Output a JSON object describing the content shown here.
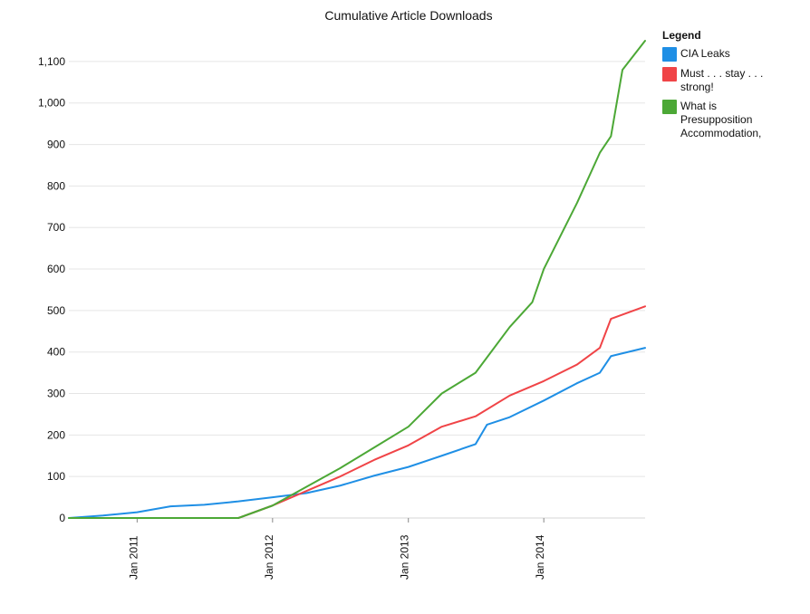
{
  "chart_data": {
    "type": "line",
    "title": "Cumulative Article Downloads",
    "xlabel": "",
    "ylabel": "",
    "x_range": [
      "2010-07-01",
      "2014-10-01"
    ],
    "ylim": [
      0,
      1150
    ],
    "grid": {
      "horizontal": true,
      "vertical": false
    },
    "x_tick_labels": [
      "Jan 2011",
      "Jan 2012",
      "Jan 2013",
      "Jan 2014"
    ],
    "y_tick_labels": [
      "0",
      "100",
      "200",
      "300",
      "400",
      "500",
      "600",
      "700",
      "800",
      "900",
      "1,000",
      "1,100"
    ],
    "legend": {
      "title": "Legend",
      "placement": "right"
    },
    "series": [
      {
        "name": "CIA Leaks",
        "color": "#1f8fe5",
        "points": [
          {
            "x": "2010-07-01",
            "y": 0
          },
          {
            "x": "2010-10-01",
            "y": 6
          },
          {
            "x": "2011-01-01",
            "y": 14
          },
          {
            "x": "2011-04-01",
            "y": 28
          },
          {
            "x": "2011-07-01",
            "y": 32
          },
          {
            "x": "2011-10-01",
            "y": 40
          },
          {
            "x": "2012-01-01",
            "y": 50
          },
          {
            "x": "2012-04-01",
            "y": 60
          },
          {
            "x": "2012-07-01",
            "y": 78
          },
          {
            "x": "2012-10-01",
            "y": 102
          },
          {
            "x": "2013-01-01",
            "y": 123
          },
          {
            "x": "2013-04-01",
            "y": 150
          },
          {
            "x": "2013-07-01",
            "y": 178
          },
          {
            "x": "2013-08-01",
            "y": 225
          },
          {
            "x": "2013-10-01",
            "y": 243
          },
          {
            "x": "2014-01-01",
            "y": 283
          },
          {
            "x": "2014-04-01",
            "y": 325
          },
          {
            "x": "2014-06-01",
            "y": 350
          },
          {
            "x": "2014-07-01",
            "y": 390
          },
          {
            "x": "2014-10-01",
            "y": 410
          }
        ]
      },
      {
        "name": "Must . . . stay . . . strong!",
        "color": "#f04447",
        "points": [
          {
            "x": "2011-10-01",
            "y": 0
          },
          {
            "x": "2012-01-01",
            "y": 30
          },
          {
            "x": "2012-04-01",
            "y": 65
          },
          {
            "x": "2012-07-01",
            "y": 100
          },
          {
            "x": "2012-10-01",
            "y": 140
          },
          {
            "x": "2013-01-01",
            "y": 175
          },
          {
            "x": "2013-04-01",
            "y": 220
          },
          {
            "x": "2013-07-01",
            "y": 245
          },
          {
            "x": "2013-10-01",
            "y": 295
          },
          {
            "x": "2014-01-01",
            "y": 330
          },
          {
            "x": "2014-04-01",
            "y": 370
          },
          {
            "x": "2014-06-01",
            "y": 410
          },
          {
            "x": "2014-07-01",
            "y": 480
          },
          {
            "x": "2014-10-01",
            "y": 510
          }
        ]
      },
      {
        "name": "What is Presupposition Accommodation,",
        "color": "#4ca836",
        "points": [
          {
            "x": "2010-07-01",
            "y": 0
          },
          {
            "x": "2011-10-01",
            "y": 0
          },
          {
            "x": "2012-01-01",
            "y": 30
          },
          {
            "x": "2012-04-01",
            "y": 75
          },
          {
            "x": "2012-07-01",
            "y": 120
          },
          {
            "x": "2012-10-01",
            "y": 170
          },
          {
            "x": "2013-01-01",
            "y": 220
          },
          {
            "x": "2013-04-01",
            "y": 300
          },
          {
            "x": "2013-07-01",
            "y": 350
          },
          {
            "x": "2013-10-01",
            "y": 460
          },
          {
            "x": "2013-12-01",
            "y": 520
          },
          {
            "x": "2014-01-01",
            "y": 600
          },
          {
            "x": "2014-04-01",
            "y": 760
          },
          {
            "x": "2014-06-01",
            "y": 880
          },
          {
            "x": "2014-07-01",
            "y": 920
          },
          {
            "x": "2014-08-01",
            "y": 1080
          },
          {
            "x": "2014-10-01",
            "y": 1150
          }
        ]
      }
    ]
  }
}
